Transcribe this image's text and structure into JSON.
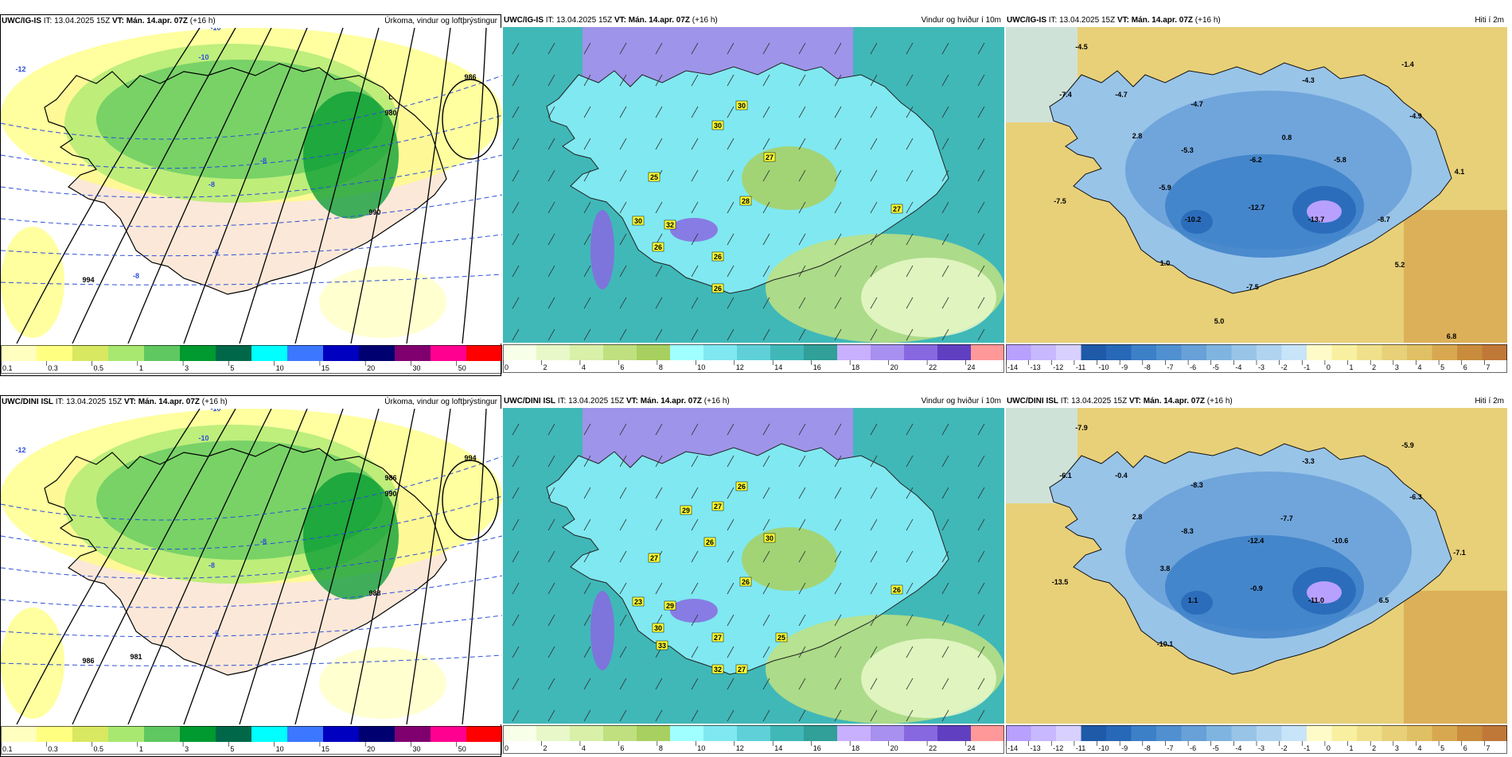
{
  "rows": [
    {
      "panels": [
        {
          "source": "UWC/IG-IS",
          "it": "IT: 13.04.2025 15Z",
          "vt": "VT: Mán. 14.apr. 07Z",
          "lead": "(+16 h)",
          "title": "Úrkoma, vindur og loftþrýstingur",
          "kind": "precip",
          "bar": {
            "colors": [
              "#ffffc0",
              "#ffff80",
              "#d8e860",
              "#a8e870",
              "#60c860",
              "#009a30",
              "#006848",
              "#00ffff",
              "#3c78ff",
              "#0000c0",
              "#000070",
              "#800070",
              "#ff0090",
              "#ff0000"
            ],
            "ticks": [
              "0.1",
              "0.3",
              "0.5",
              "1",
              "3",
              "5",
              "10",
              "15",
              "20",
              "30",
              "50"
            ]
          },
          "labels": [
            "-10",
            "-12",
            "-10",
            "-8",
            "-8",
            "-6",
            "-8",
            "L",
            "980",
            "986",
            "990",
            "994"
          ]
        },
        {
          "source": "UWC/IG-IS",
          "it": "IT: 13.04.2025 15Z",
          "vt": "VT: Mán. 14.apr. 07Z",
          "lead": "(+16 h)",
          "title": "Vindur og hviður í 10m",
          "kind": "wind",
          "bar": {
            "colors": [
              "#f8ffe8",
              "#e8f8c8",
              "#d8f0a8",
              "#c0e080",
              "#a8d060",
              "#a0ffff",
              "#80e8f0",
              "#60d0d8",
              "#40b8b8",
              "#30a098",
              "#c8b0ff",
              "#a890f0",
              "#8868e0",
              "#6040c0",
              "#ff9898"
            ],
            "ticks": [
              "0",
              "2",
              "4",
              "6",
              "8",
              "10",
              "12",
              "14",
              "16",
              "18",
              "20",
              "22",
              "24"
            ]
          },
          "labels": [
            "30",
            "30",
            "27",
            "25",
            "28",
            "30",
            "32",
            "26",
            "26",
            "27",
            "26"
          ]
        },
        {
          "source": "UWC/IG-IS",
          "it": "IT: 13.04.2025 15Z",
          "vt": "VT: Mán. 14.apr. 07Z",
          "lead": "(+16 h)",
          "title": "Hiti í 2m",
          "kind": "temp",
          "bar": {
            "colors": [
              "#b8a0ff",
              "#c8b8ff",
              "#d8d0ff",
              "#1e5aa8",
              "#2868b8",
              "#3c80c8",
              "#5090d0",
              "#68a0d8",
              "#80b4e0",
              "#98c4e8",
              "#b0d4f0",
              "#c8e4f8",
              "#fffbc8",
              "#f8f0a0",
              "#f0e08c",
              "#e8d078",
              "#e0c064",
              "#d8a850",
              "#c88c3c",
              "#c07838"
            ],
            "ticks": [
              "-14",
              "-13",
              "-12",
              "-11",
              "-10",
              "-9",
              "-8",
              "-7",
              "-6",
              "-5",
              "-4",
              "-3",
              "-2",
              "-1",
              "0",
              "1",
              "2",
              "3",
              "4",
              "5",
              "6",
              "7"
            ]
          },
          "labels": [
            "-4.5",
            "-7.4",
            "-4.7",
            "-4.7",
            "-4.3",
            "-1.4",
            "-4.9",
            "2.8",
            "-5.3",
            "0.8",
            "-5.8",
            "-6.2",
            "4.1",
            "-5.9",
            "-7.5",
            "-10.2",
            "-12.7",
            "-13.7",
            "-8.7",
            "1.0",
            "5.2",
            "-7.5",
            "5.0",
            "6.8"
          ]
        }
      ]
    },
    {
      "panels": [
        {
          "source": "UWC/DINI ISL",
          "it": "IT: 13.04.2025 15Z",
          "vt": "VT: Mán. 14.apr. 07Z",
          "lead": "(+16 h)",
          "title": "Úrkoma, vindur og loftþrýstingur",
          "kind": "precip",
          "bar": {
            "colors": [
              "#ffffc0",
              "#ffff80",
              "#d8e860",
              "#a8e870",
              "#60c860",
              "#009a30",
              "#006848",
              "#00ffff",
              "#3c78ff",
              "#0000c0",
              "#000070",
              "#800070",
              "#ff0090",
              "#ff0000"
            ],
            "ticks": [
              "0.1",
              "0.3",
              "0.5",
              "1",
              "3",
              "5",
              "10",
              "15",
              "20",
              "30",
              "50"
            ]
          },
          "labels": [
            "-10",
            "-12",
            "-10",
            "-8",
            "-8",
            "-6",
            "981",
            "986",
            "990",
            "994",
            "988",
            "986"
          ]
        },
        {
          "source": "UWC/DINI ISL",
          "it": "IT: 13.04.2025 15Z",
          "vt": "VT: Mán. 14.apr. 07Z",
          "lead": "(+16 h)",
          "title": "Vindur og hviður í 10m",
          "kind": "wind",
          "bar": {
            "colors": [
              "#f8ffe8",
              "#e8f8c8",
              "#d8f0a8",
              "#c0e080",
              "#a8d060",
              "#a0ffff",
              "#80e8f0",
              "#60d0d8",
              "#40b8b8",
              "#30a098",
              "#c8b0ff",
              "#a890f0",
              "#8868e0",
              "#6040c0",
              "#ff9898"
            ],
            "ticks": [
              "0",
              "2",
              "4",
              "6",
              "8",
              "10",
              "12",
              "14",
              "16",
              "18",
              "20",
              "22",
              "24"
            ]
          },
          "labels": [
            "26",
            "27",
            "30",
            "27",
            "26",
            "23",
            "29",
            "30",
            "27",
            "26",
            "32",
            "33",
            "26",
            "29",
            "25",
            "27"
          ]
        },
        {
          "source": "UWC/DINI ISL",
          "it": "IT: 13.04.2025 15Z",
          "vt": "VT: Mán. 14.apr. 07Z",
          "lead": "(+16 h)",
          "title": "Hiti í 2m",
          "kind": "temp",
          "bar": {
            "colors": [
              "#b8a0ff",
              "#c8b8ff",
              "#d8d0ff",
              "#1e5aa8",
              "#2868b8",
              "#3c80c8",
              "#5090d0",
              "#68a0d8",
              "#80b4e0",
              "#98c4e8",
              "#b0d4f0",
              "#c8e4f8",
              "#fffbc8",
              "#f8f0a0",
              "#f0e08c",
              "#e8d078",
              "#e0c064",
              "#d8a850",
              "#c88c3c",
              "#c07838"
            ],
            "ticks": [
              "-14",
              "-13",
              "-12",
              "-11",
              "-10",
              "-9",
              "-8",
              "-7",
              "-6",
              "-5",
              "-4",
              "-3",
              "-2",
              "-1",
              "0",
              "1",
              "2",
              "3",
              "4",
              "5",
              "6",
              "7"
            ]
          },
          "labels": [
            "-7.9",
            "-6.1",
            "-0.4",
            "-8.3",
            "-3.3",
            "-5.9",
            "-6.3",
            "2.8",
            "-8.3",
            "-7.7",
            "-10.6",
            "-12.4",
            "-7.1",
            "3.8",
            "-13.5",
            "1.1",
            "-0.9",
            "-11.0",
            "6.5",
            "-10.1"
          ]
        }
      ]
    }
  ]
}
